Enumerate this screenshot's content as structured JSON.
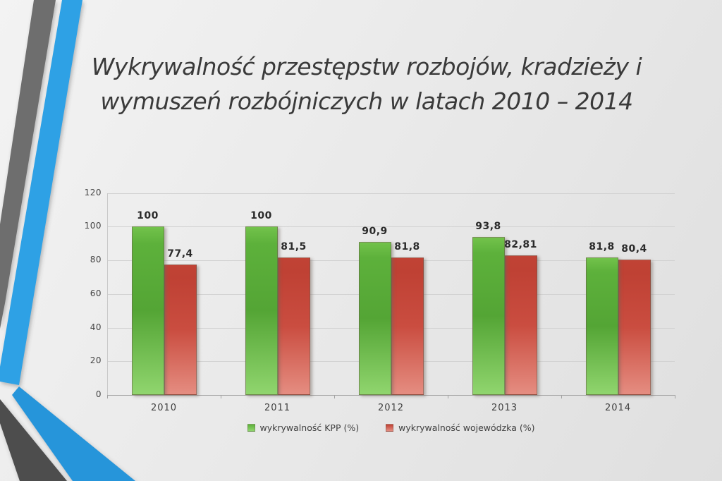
{
  "slide": {
    "title_line1": "Wykrywalność przestępstw rozbojów, kradzieży i",
    "title_line2": "wymuszeń rozbójniczych w latach 2010 – 2014"
  },
  "decoration": {
    "stripe_gray": "#6e6e6e",
    "stripe_blue": "#2fa1e5",
    "band_blue": "#2795da",
    "band_gray": "#4d4d4d"
  },
  "chart_data": {
    "type": "bar",
    "title": "",
    "xlabel": "",
    "ylabel": "",
    "categories": [
      "2010",
      "2011",
      "2012",
      "2013",
      "2014"
    ],
    "series": [
      {
        "name": "wykrywalność KPP (%)",
        "values": [
          100,
          100,
          90.9,
          93.8,
          81.8
        ],
        "labels": [
          "100",
          "100",
          "90,9",
          "93,8",
          "81,8"
        ],
        "color": "#5fb23c",
        "gradient": [
          "#72c24b",
          "#5db13b",
          "#54a535",
          "#90d56e"
        ]
      },
      {
        "name": "wykrywalność wojewódzka (%)",
        "values": [
          77.4,
          81.5,
          81.8,
          82.81,
          80.4
        ],
        "labels": [
          "77,4",
          "81,5",
          "81,8",
          "82,81",
          "80,4"
        ],
        "color": "#c9493b",
        "gradient": [
          "#c04335",
          "#bf4134",
          "#ca4d40",
          "#e58d81"
        ]
      }
    ],
    "ylim": [
      0,
      120
    ],
    "y_ticks": [
      0,
      20,
      40,
      60,
      80,
      100,
      120
    ],
    "grid": true,
    "legend_position": "bottom",
    "value_labels_shown": true
  }
}
